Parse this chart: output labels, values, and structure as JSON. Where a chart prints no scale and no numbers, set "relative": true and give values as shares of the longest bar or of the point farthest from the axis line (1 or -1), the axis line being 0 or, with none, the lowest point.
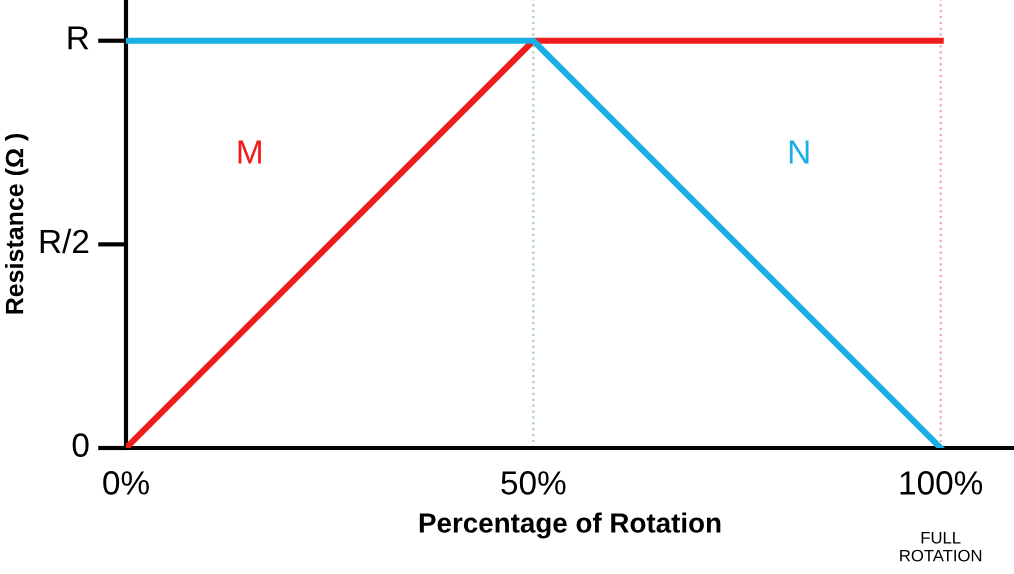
{
  "chart_data": {
    "type": "line",
    "relative": true,
    "xlabel": "Percentage of Rotation",
    "ylabel": "Resistance (Ω )",
    "x": [
      0,
      50,
      100
    ],
    "series": [
      {
        "name": "M",
        "color": "#ee1c1c",
        "values": [
          0,
          1,
          1
        ]
      },
      {
        "name": "N",
        "color": "#1aaee6",
        "values": [
          1,
          1,
          0
        ]
      }
    ],
    "xlim": [
      0,
      109
    ],
    "xticks": [
      {
        "value": 0,
        "label": "0%"
      },
      {
        "value": 50,
        "label": "50%"
      },
      {
        "value": 100,
        "label": "100%"
      }
    ],
    "ref_lines": [
      {
        "axis": "x",
        "value": 50,
        "label": null,
        "color": "#a8d4a8",
        "line_style": "dotted"
      },
      {
        "axis": "x",
        "value": 100,
        "label": null,
        "color": "#f0a8a8",
        "line_style": "dotted"
      }
    ],
    "annotations": [
      "R",
      "R/2",
      "0",
      "FULL\nROTATION"
    ],
    "grid": false,
    "legend": false,
    "marker": "none",
    "line_style": "solid"
  }
}
